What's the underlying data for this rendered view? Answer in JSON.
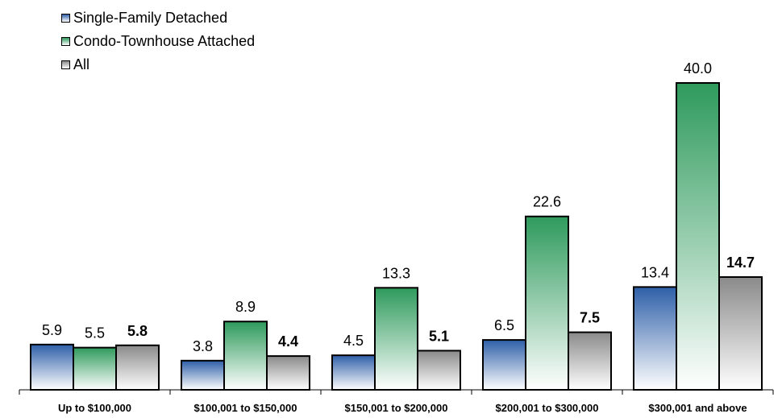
{
  "chart_data": {
    "type": "bar",
    "categories": [
      "Up to $100,000",
      "$100,001 to $150,000",
      "$150,001 to $200,000",
      "$200,001 to $300,000",
      "$300,001 and above"
    ],
    "series": [
      {
        "name": "Single-Family Detached",
        "values": [
          5.9,
          3.8,
          4.5,
          6.5,
          13.4
        ],
        "color": "#2e5fa8",
        "label_bold": false
      },
      {
        "name": "Condo-Townhouse Attached",
        "values": [
          5.5,
          8.9,
          13.3,
          22.6,
          40.0
        ],
        "color": "#2e9a5c",
        "label_bold": false
      },
      {
        "name": "All",
        "values": [
          5.8,
          4.4,
          5.1,
          7.5,
          14.7
        ],
        "color": "#8a8a8a",
        "label_bold": true
      }
    ],
    "value_labels": [
      [
        "5.9",
        "3.8",
        "4.5",
        "6.5",
        "13.4"
      ],
      [
        "5.5",
        "8.9",
        "13.3",
        "22.6",
        "40.0"
      ],
      [
        "5.8",
        "4.4",
        "5.1",
        "7.5",
        "14.7"
      ]
    ],
    "ylim": [
      0,
      40
    ],
    "legend_position": "top-left",
    "grid": false
  }
}
